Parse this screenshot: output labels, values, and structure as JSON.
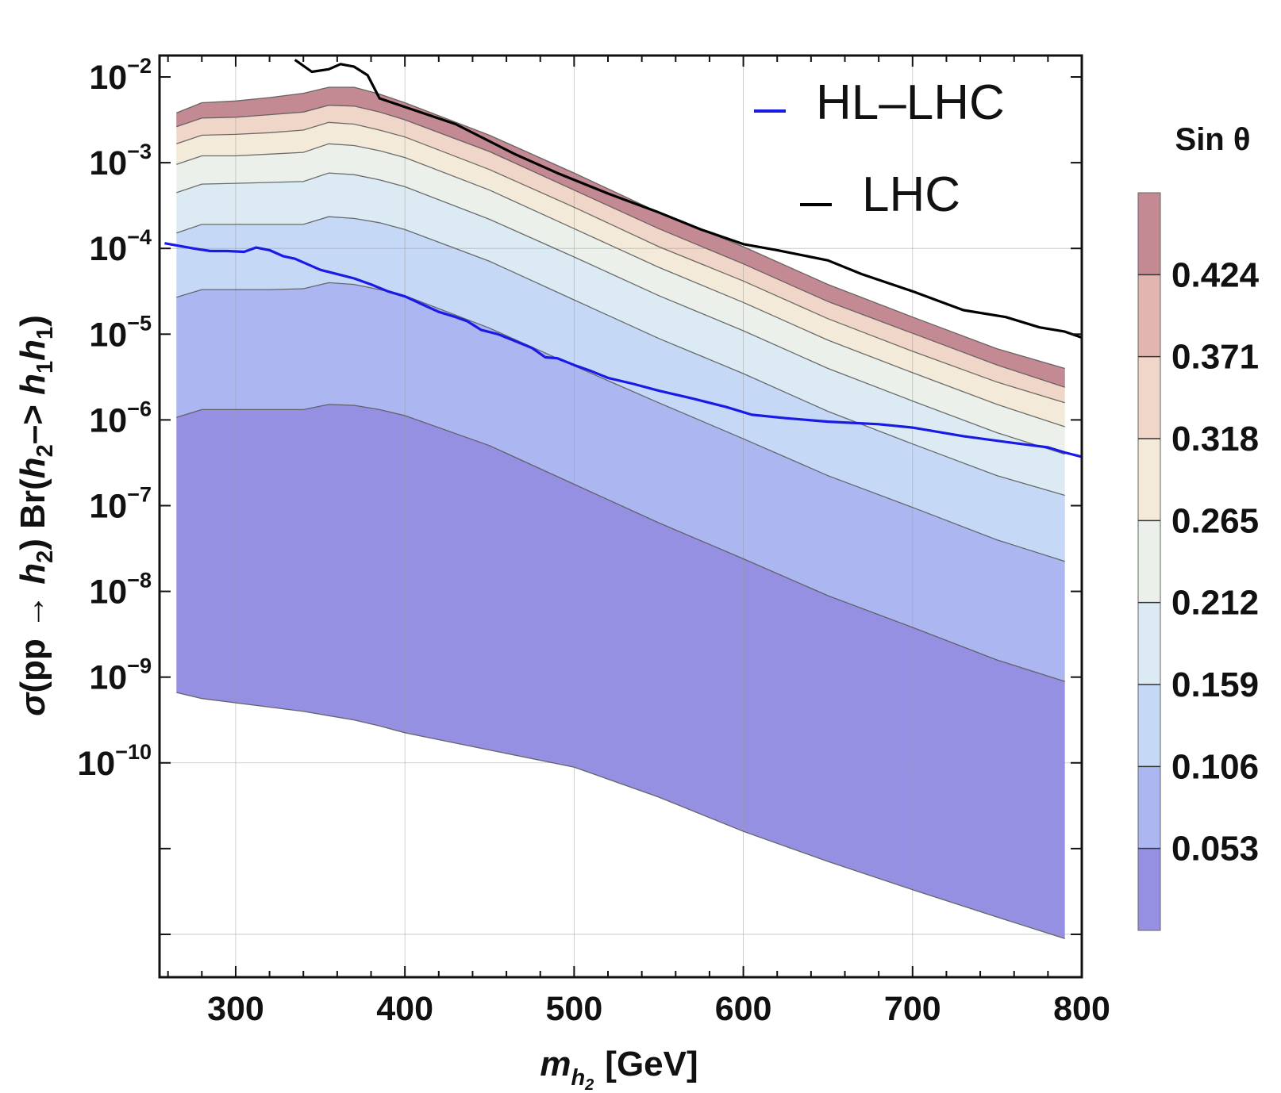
{
  "chart_data": {
    "type": "area",
    "xlabel": {
      "main": "m",
      "sub": "h",
      "subsub": "2",
      "unit": "[GeV]"
    },
    "ylabel": {
      "sigma": "σ",
      "pp": "(pp → ",
      "h2": "h",
      "h2sub": "2",
      "br": ") Br(",
      "h2b": "h",
      "h2bsub": "2",
      "arrow": "–> ",
      "h1a": "h",
      "h1asub": "1",
      "h1b": "h",
      "h1bsub": "1",
      "close": ")"
    },
    "xlim": [
      255,
      800
    ],
    "ylim_log10": [
      -12.5,
      -1.75
    ],
    "x_ticks": [
      {
        "value": 300,
        "label": "300"
      },
      {
        "value": 400,
        "label": "400"
      },
      {
        "value": 500,
        "label": "500"
      },
      {
        "value": 600,
        "label": "600"
      },
      {
        "value": 700,
        "label": "700"
      },
      {
        "value": 800,
        "label": "800"
      }
    ],
    "y_ticks": [
      {
        "exp": -2,
        "base": "10",
        "sup": "−2"
      },
      {
        "exp": -3,
        "base": "10",
        "sup": "−3"
      },
      {
        "exp": -4,
        "base": "10",
        "sup": "−4"
      },
      {
        "exp": -5,
        "base": "10",
        "sup": "−5"
      },
      {
        "exp": -6,
        "base": "10",
        "sup": "−6"
      },
      {
        "exp": -7,
        "base": "10",
        "sup": "−7"
      },
      {
        "exp": -8,
        "base": "10",
        "sup": "−8"
      },
      {
        "exp": -9,
        "base": "10",
        "sup": "−9"
      },
      {
        "exp": -10,
        "base": "10",
        "sup": "−10"
      }
    ],
    "contour_levels": [
      0.053,
      0.106,
      0.159,
      0.212,
      0.265,
      0.318,
      0.371,
      0.424
    ],
    "contour_x": [
      265,
      280,
      300,
      320,
      340,
      355,
      370,
      385,
      400,
      450,
      500,
      550,
      600,
      650,
      700,
      750,
      790
    ],
    "contour_curves_log10": [
      [
        -9.18,
        -9.25,
        -9.3,
        -9.35,
        -9.4,
        -9.45,
        -9.5,
        -9.57,
        -9.65,
        -9.85,
        -10.05,
        -10.4,
        -10.8,
        -11.15,
        -11.48,
        -11.8,
        -12.05
      ],
      [
        -5.97,
        -5.88,
        -5.88,
        -5.88,
        -5.88,
        -5.82,
        -5.83,
        -5.88,
        -5.95,
        -6.3,
        -6.75,
        -7.2,
        -7.62,
        -8.05,
        -8.42,
        -8.8,
        -9.05
      ],
      [
        -4.57,
        -4.48,
        -4.48,
        -4.48,
        -4.47,
        -4.4,
        -4.42,
        -4.48,
        -4.55,
        -4.93,
        -5.37,
        -5.8,
        -6.22,
        -6.65,
        -7.02,
        -7.4,
        -7.65
      ],
      [
        -3.82,
        -3.72,
        -3.72,
        -3.72,
        -3.72,
        -3.63,
        -3.65,
        -3.7,
        -3.78,
        -4.15,
        -4.6,
        -5.05,
        -5.46,
        -5.9,
        -6.28,
        -6.65,
        -6.88
      ],
      [
        -3.35,
        -3.25,
        -3.24,
        -3.23,
        -3.22,
        -3.12,
        -3.14,
        -3.2,
        -3.28,
        -3.66,
        -4.1,
        -4.55,
        -4.96,
        -5.4,
        -5.78,
        -6.15,
        -6.4
      ],
      [
        -3.02,
        -2.92,
        -2.92,
        -2.9,
        -2.88,
        -2.78,
        -2.8,
        -2.86,
        -2.94,
        -3.32,
        -3.77,
        -4.22,
        -4.63,
        -5.07,
        -5.45,
        -5.82,
        -6.08
      ],
      [
        -2.78,
        -2.68,
        -2.67,
        -2.65,
        -2.62,
        -2.53,
        -2.55,
        -2.62,
        -2.7,
        -3.08,
        -3.52,
        -3.98,
        -4.38,
        -4.82,
        -5.2,
        -5.56,
        -5.8
      ],
      [
        -2.58,
        -2.48,
        -2.47,
        -2.44,
        -2.41,
        -2.33,
        -2.34,
        -2.41,
        -2.5,
        -2.87,
        -3.32,
        -3.77,
        -4.18,
        -4.62,
        -4.99,
        -5.36,
        -5.62
      ],
      [
        -2.42,
        -2.3,
        -2.28,
        -2.24,
        -2.19,
        -2.12,
        -2.12,
        -2.2,
        -2.3,
        -2.68,
        -3.12,
        -3.58,
        -3.98,
        -4.42,
        -4.8,
        -5.17,
        -5.4
      ]
    ],
    "band_colors": [
      "#9590e2",
      "#acb7f2",
      "#c5d8f6",
      "#dcebf3",
      "#ebf1ea",
      "#f3ead9",
      "#f0d6c8",
      "#e3b5b1",
      "#c48a94"
    ],
    "series": [
      {
        "name": "HL–LHC",
        "color": "#1a1ae6",
        "x": [
          258,
          275,
          285,
          295,
          305,
          312,
          320,
          328,
          335,
          342,
          350,
          360,
          370,
          380,
          390,
          400,
          410,
          420,
          430,
          437,
          445,
          455,
          465,
          475,
          483,
          490,
          500,
          510,
          520,
          535,
          550,
          570,
          590,
          605,
          625,
          650,
          680,
          700,
          730,
          760,
          780,
          790,
          800
        ],
        "log10": [
          -3.94,
          -4.0,
          -4.03,
          -4.03,
          -4.04,
          -3.99,
          -4.02,
          -4.09,
          -4.12,
          -4.18,
          -4.25,
          -4.3,
          -4.35,
          -4.42,
          -4.5,
          -4.56,
          -4.65,
          -4.74,
          -4.8,
          -4.85,
          -4.95,
          -5.0,
          -5.08,
          -5.16,
          -5.27,
          -5.28,
          -5.36,
          -5.43,
          -5.51,
          -5.58,
          -5.66,
          -5.75,
          -5.85,
          -5.94,
          -5.98,
          -6.02,
          -6.05,
          -6.09,
          -6.19,
          -6.27,
          -6.32,
          -6.38,
          -6.43
        ]
      },
      {
        "name": "LHC",
        "color": "#000000",
        "x": [
          335,
          345,
          355,
          362,
          370,
          378,
          385,
          400,
          430,
          465,
          490,
          520,
          550,
          575,
          600,
          620,
          650,
          670,
          700,
          730,
          755,
          775,
          790,
          800
        ],
        "log10": [
          -1.8,
          -1.94,
          -1.91,
          -1.85,
          -1.88,
          -1.98,
          -2.25,
          -2.35,
          -2.55,
          -2.9,
          -3.12,
          -3.36,
          -3.58,
          -3.78,
          -3.95,
          -4.02,
          -4.14,
          -4.3,
          -4.5,
          -4.72,
          -4.8,
          -4.92,
          -4.97,
          -5.04
        ]
      }
    ],
    "legend": [
      {
        "label": "HL–LHC",
        "color": "#1a1ae6"
      },
      {
        "label": "LHC",
        "color": "#000000"
      }
    ],
    "colorbar": {
      "title": "Sin θ",
      "labels": [
        "0.424",
        "0.371",
        "0.318",
        "0.265",
        "0.212",
        "0.159",
        "0.106",
        "0.053"
      ]
    },
    "grid": true
  }
}
